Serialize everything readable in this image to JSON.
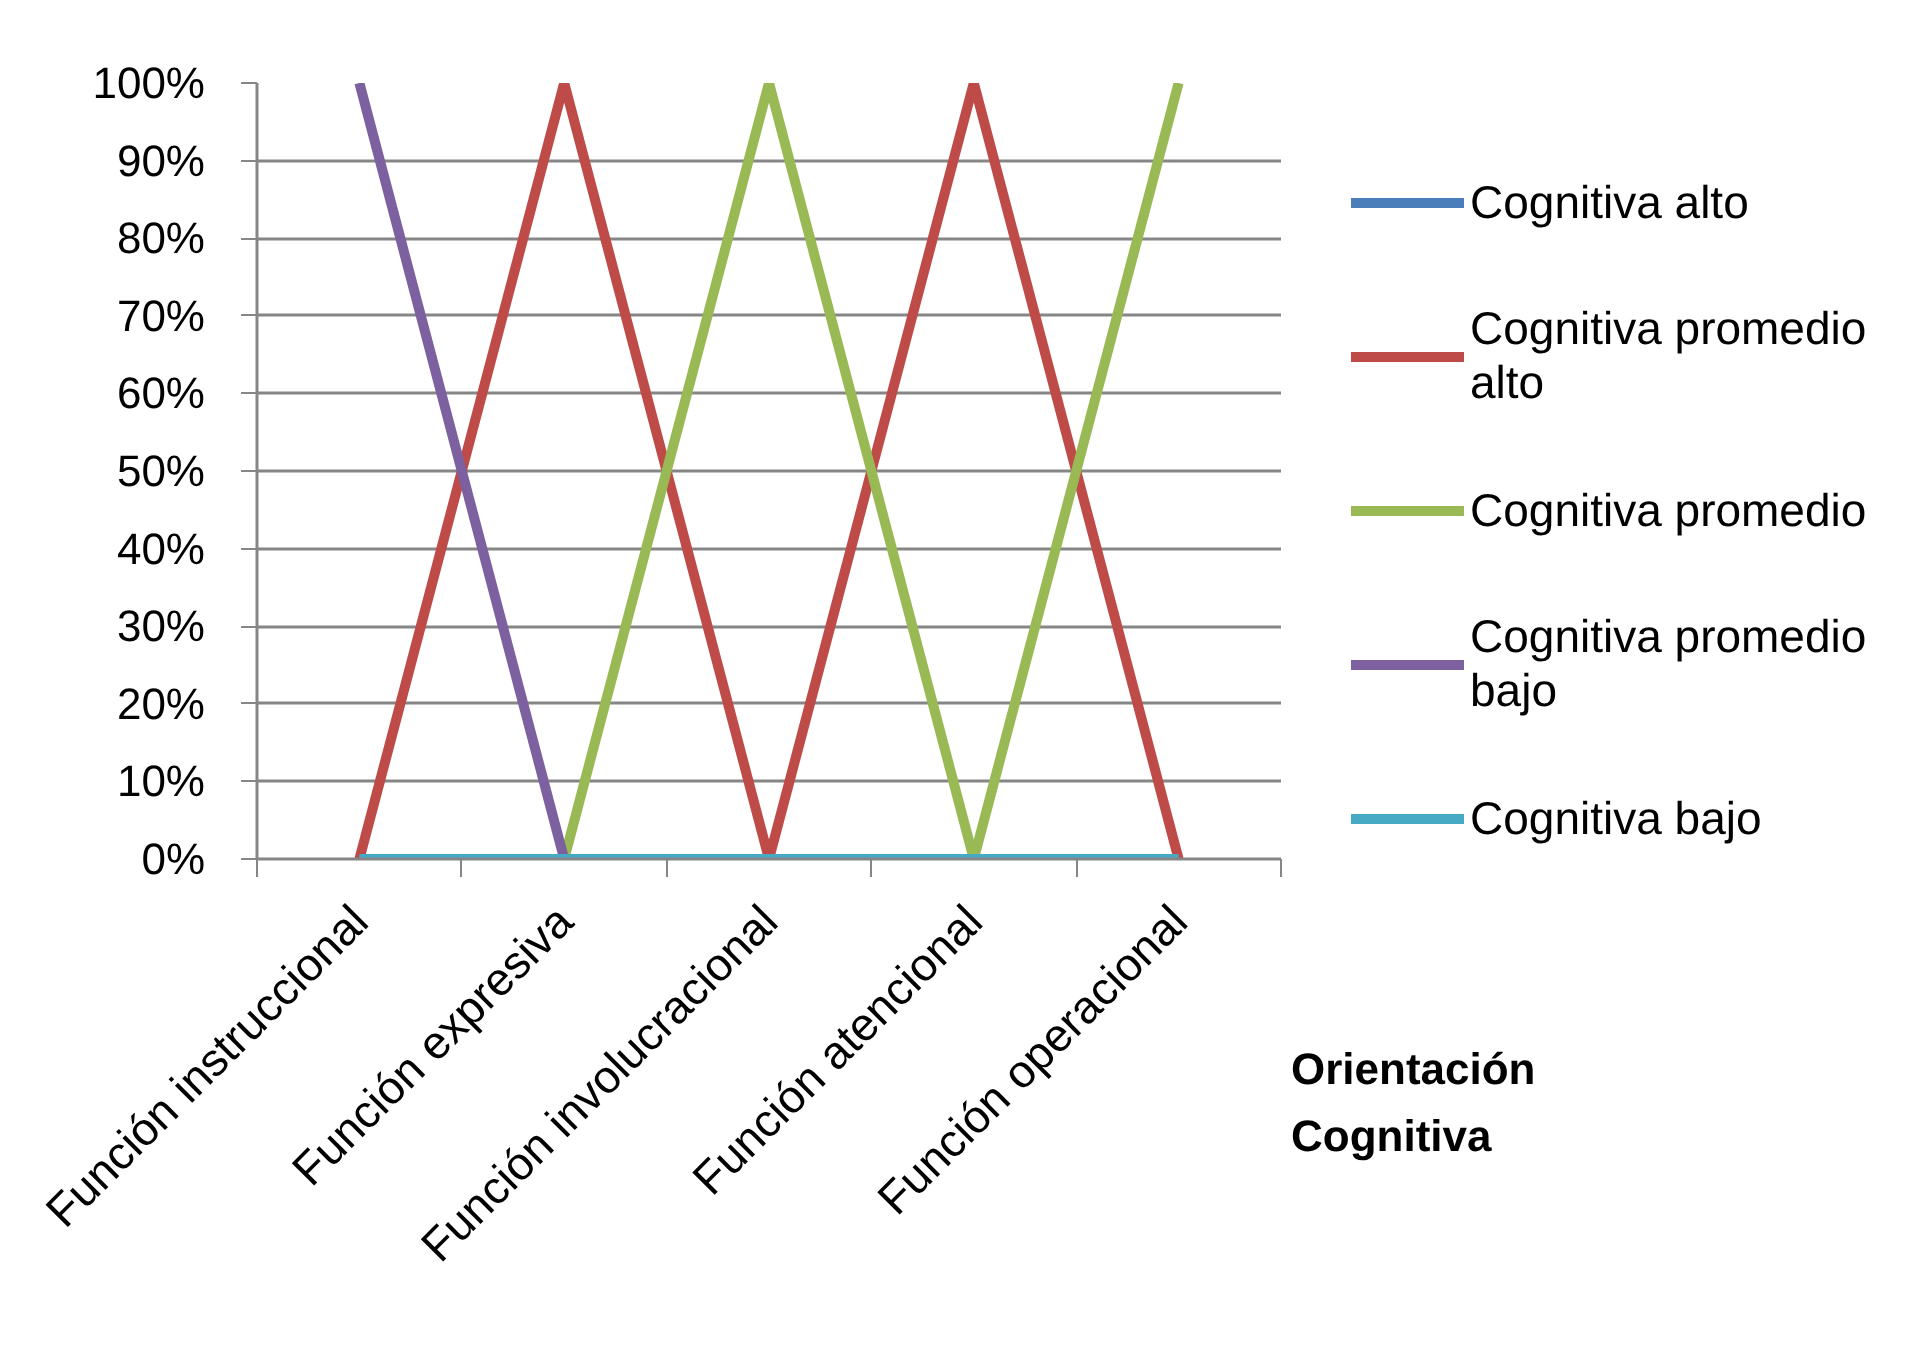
{
  "chart_data": {
    "type": "line",
    "xlabel": "Orientación Cognitiva",
    "categories": [
      "Función instruccional",
      "Función expresiva",
      "Función involucracional",
      "Función atencional",
      "Función operacional"
    ],
    "series": [
      {
        "name": "Cognitiva alto",
        "color": "#4a7ebb",
        "values": [
          null,
          null,
          null,
          null,
          null
        ]
      },
      {
        "name": "Cognitiva promedio alto",
        "color": "#be4b48",
        "values": [
          0,
          100,
          0,
          100,
          0
        ]
      },
      {
        "name": "Cognitiva promedio",
        "color": "#98b954",
        "values": [
          null,
          0,
          100,
          0,
          100
        ]
      },
      {
        "name": "Cognitiva promedio bajo",
        "color": "#7d60a0",
        "values": [
          100,
          0,
          null,
          null,
          null
        ]
      },
      {
        "name": "Cognitiva bajo",
        "color": "#46aac5",
        "values": [
          0,
          0,
          0,
          0,
          0
        ]
      }
    ],
    "ylim": [
      0,
      100
    ],
    "yticks": [
      {
        "value": 0,
        "label": "0%"
      },
      {
        "value": 10,
        "label": "10%"
      },
      {
        "value": 20,
        "label": "20%"
      },
      {
        "value": 30,
        "label": "30%"
      },
      {
        "value": 40,
        "label": "40%"
      },
      {
        "value": 50,
        "label": "50%"
      },
      {
        "value": 60,
        "label": "60%"
      },
      {
        "value": 70,
        "label": "70%"
      },
      {
        "value": 80,
        "label": "80%"
      },
      {
        "value": 90,
        "label": "90%"
      },
      {
        "value": 100,
        "label": "100%"
      }
    ],
    "grid": "y",
    "legend": "right"
  }
}
